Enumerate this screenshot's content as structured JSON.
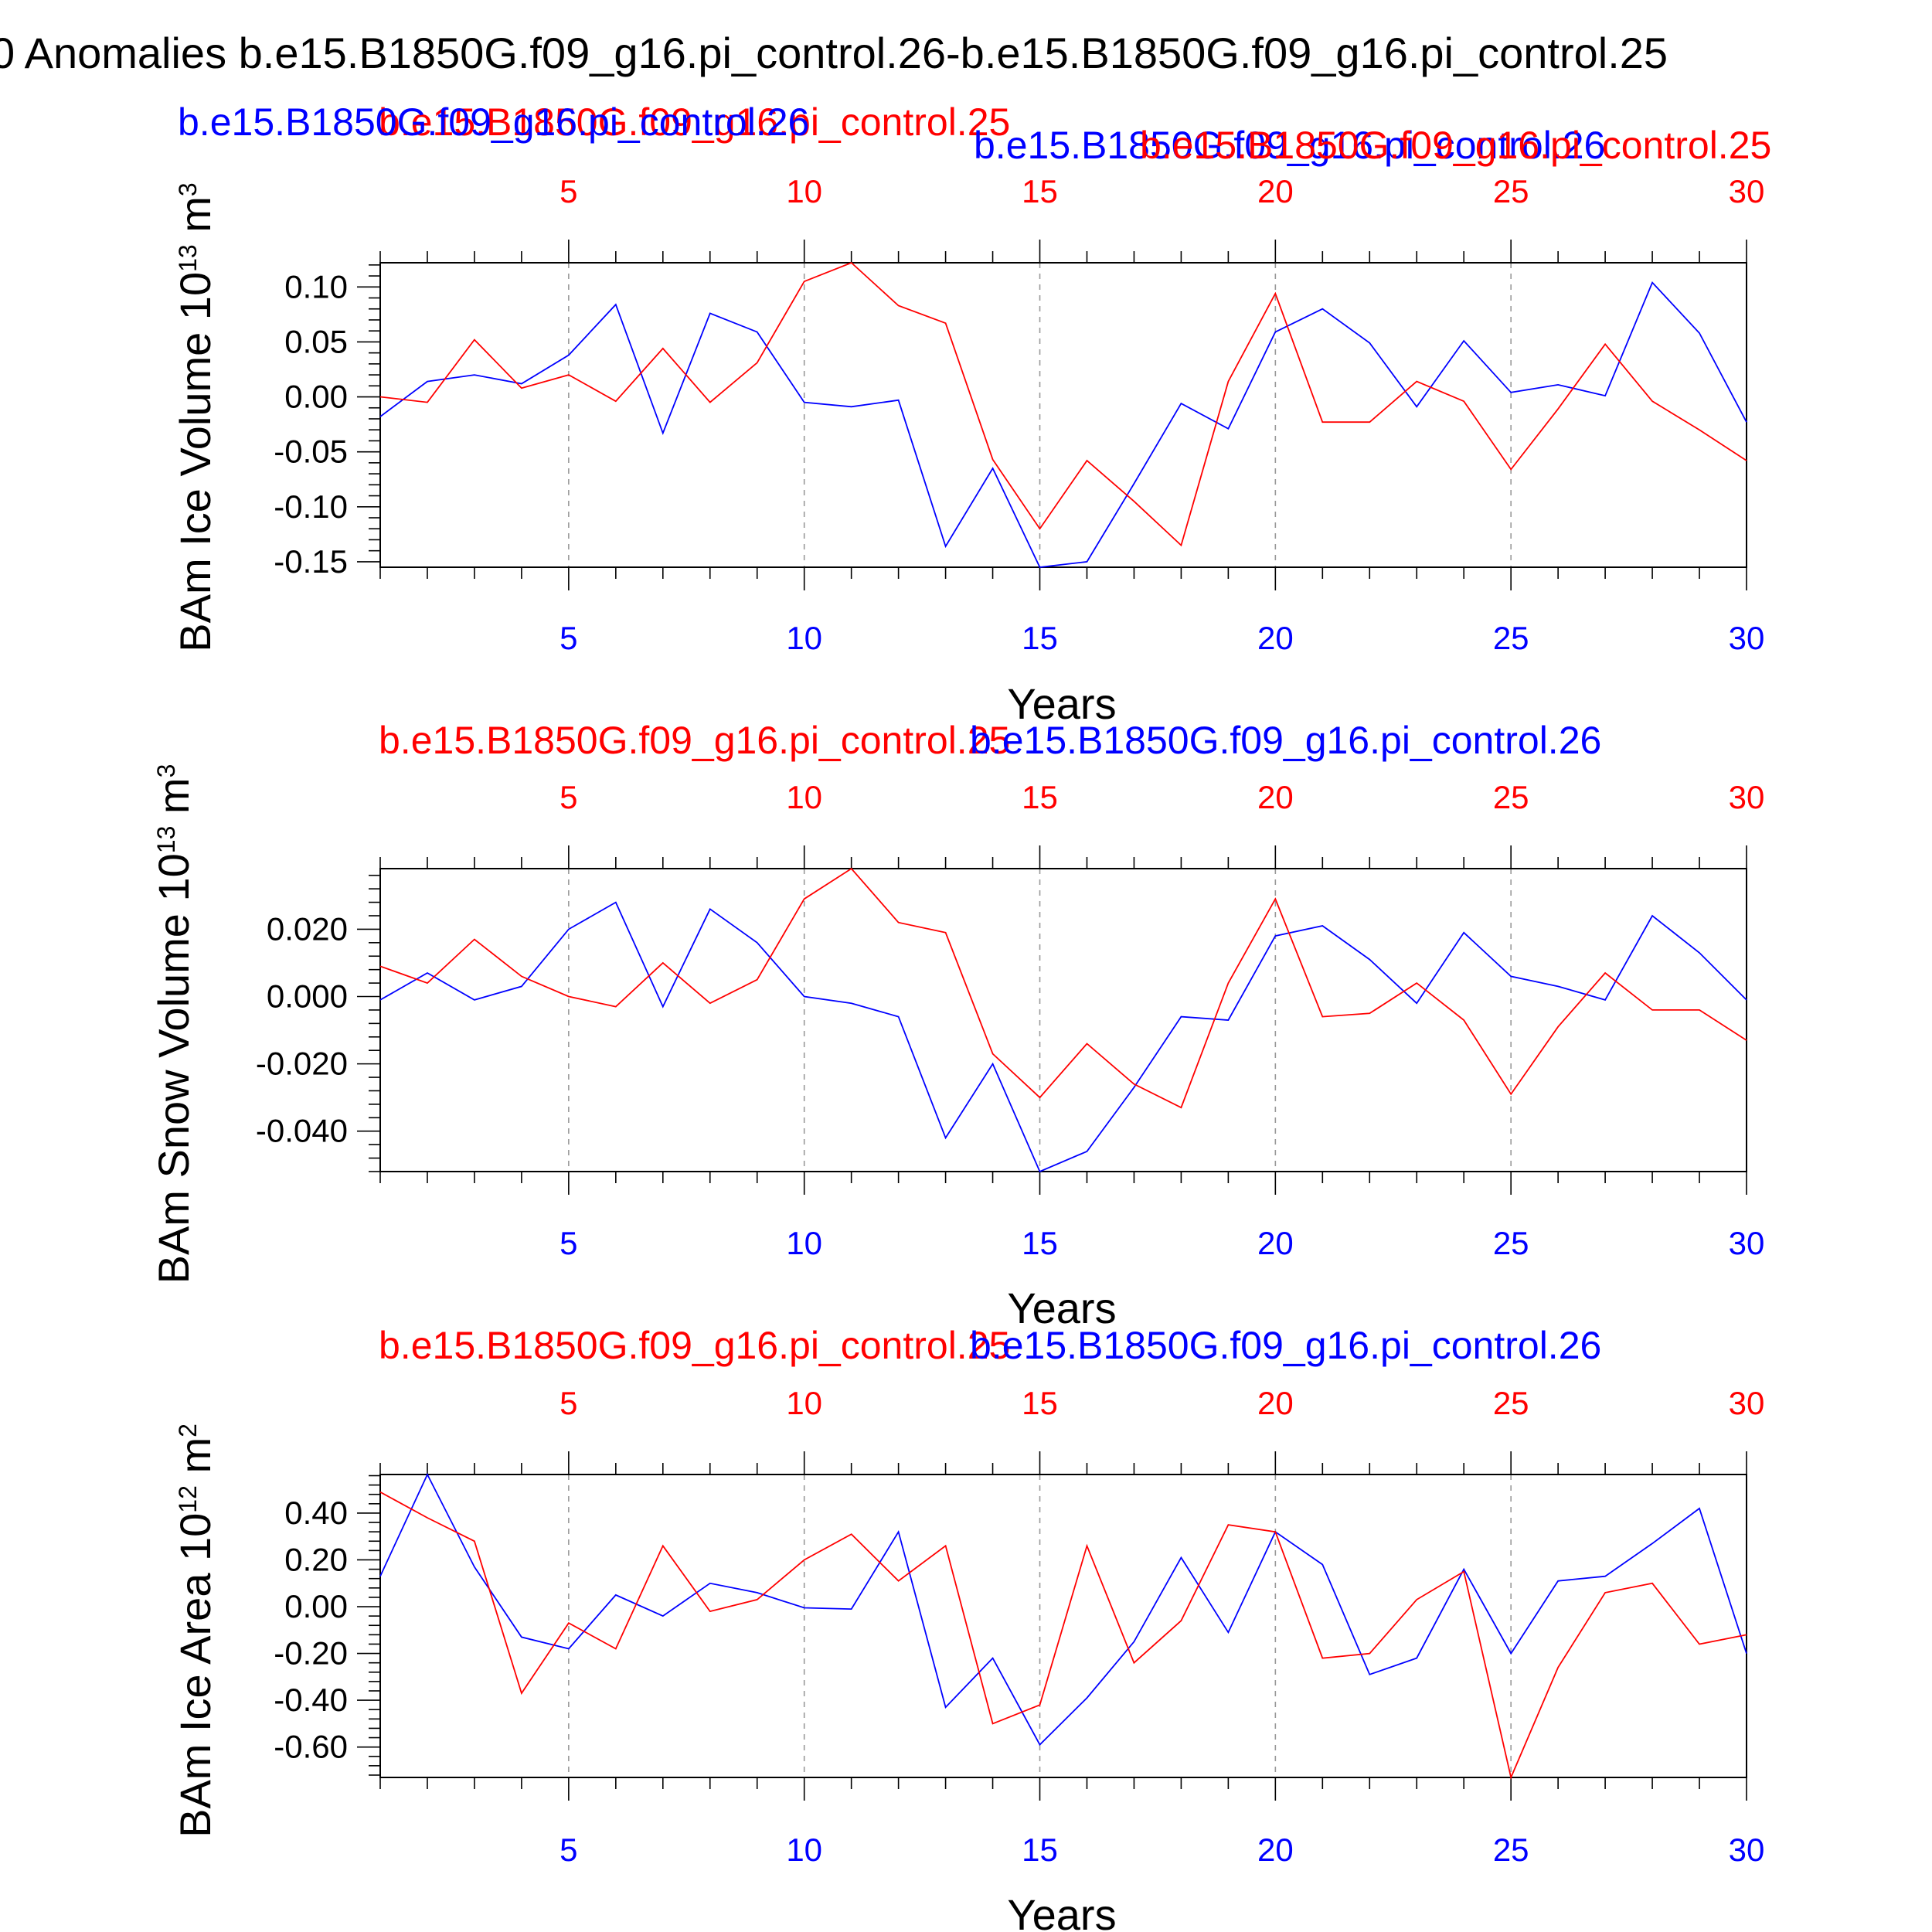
{
  "title": "0 Anomalies b.e15.B1850G.f09_g16.pi_control.26-b.e15.B1850G.f09_g16.pi_control.25",
  "colors": {
    "run26": "#0000ff",
    "run25": "#ff0000",
    "frame": "#000000",
    "grid": "#999999"
  },
  "chart_data": [
    {
      "type": "line",
      "ylabel": "BAm Ice Volume 10",
      "ylabel_exp": "13",
      "ylabel_unit": " m",
      "ylabel_unit_exp": "3",
      "xlabel": "Years",
      "xlim": [
        1,
        30
      ],
      "ylim": [
        -0.155,
        0.122
      ],
      "yticks": [
        -0.15,
        -0.1,
        -0.05,
        0.0,
        0.05,
        0.1
      ],
      "ytick_labels": [
        "-0.15",
        "-0.10",
        "-0.05",
        "0.00",
        "0.05",
        "0.10"
      ],
      "xticks": [
        5,
        10,
        15,
        20,
        25,
        30
      ],
      "xtick_labels": [
        "5",
        "10",
        "15",
        "20",
        "25",
        "30"
      ],
      "grid": "vertical dashed at major x ticks",
      "top_legend": [
        {
          "text": "b.e15.B1850G.f09_g16.pi_control.25",
          "color": "red"
        },
        {
          "text": "b.e15.B1850G.f09_g16.pi_control.26",
          "color": "blue"
        },
        {
          "text": "b.e15.B1850G.f09_g16.pi_control.26",
          "color": "blue"
        },
        {
          "text": "b.e15.B1850G.f09_g16.pi_control.25",
          "color": "red"
        }
      ],
      "x": [
        1,
        2,
        3,
        4,
        5,
        6,
        7,
        8,
        9,
        10,
        11,
        12,
        13,
        14,
        15,
        16,
        17,
        18,
        19,
        20,
        21,
        22,
        23,
        24,
        25,
        26,
        27,
        28,
        29,
        30
      ],
      "series": [
        {
          "name": "b.e15.B1850G.f09_g16.pi_control.26",
          "color": "blue",
          "values": [
            -0.018,
            0.014,
            0.02,
            0.012,
            0.038,
            0.084,
            -0.033,
            0.076,
            0.059,
            -0.005,
            -0.009,
            -0.003,
            -0.136,
            -0.065,
            -0.155,
            -0.15,
            -0.079,
            -0.006,
            -0.029,
            0.059,
            0.08,
            0.049,
            -0.009,
            0.051,
            0.004,
            0.011,
            0.001,
            0.104,
            0.058,
            -0.023
          ]
        },
        {
          "name": "b.e15.B1850G.f09_g16.pi_control.25",
          "color": "red",
          "values": [
            0.0,
            -0.005,
            0.052,
            0.008,
            0.02,
            -0.004,
            0.044,
            -0.005,
            0.031,
            0.105,
            0.122,
            0.083,
            0.067,
            -0.057,
            -0.12,
            -0.058,
            -0.095,
            -0.135,
            0.014,
            0.094,
            -0.023,
            -0.023,
            0.014,
            -0.004,
            -0.066,
            -0.011,
            0.048,
            -0.004,
            -0.03,
            -0.058
          ]
        }
      ]
    },
    {
      "type": "line",
      "ylabel": "BAm Snow Volume 10",
      "ylabel_exp": "13",
      "ylabel_unit": " m",
      "ylabel_unit_exp": "3",
      "xlabel": "Years",
      "xlim": [
        1,
        30
      ],
      "ylim": [
        -0.052,
        0.038
      ],
      "yticks": [
        -0.04,
        -0.02,
        0.0,
        0.02
      ],
      "ytick_labels": [
        "-0.040",
        "-0.020",
        "0.000",
        "0.020"
      ],
      "xticks": [
        5,
        10,
        15,
        20,
        25,
        30
      ],
      "xtick_labels": [
        "5",
        "10",
        "15",
        "20",
        "25",
        "30"
      ],
      "grid": "vertical dashed at major x ticks",
      "top_legend": [
        {
          "text": "b.e15.B1850G.f09_g16.pi_control.25",
          "color": "red"
        },
        {
          "text": "b.e15.B1850G.f09_g16.pi_control.26",
          "color": "blue"
        }
      ],
      "x": [
        1,
        2,
        3,
        4,
        5,
        6,
        7,
        8,
        9,
        10,
        11,
        12,
        13,
        14,
        15,
        16,
        17,
        18,
        19,
        20,
        21,
        22,
        23,
        24,
        25,
        26,
        27,
        28,
        29,
        30
      ],
      "series": [
        {
          "name": "b.e15.B1850G.f09_g16.pi_control.26",
          "color": "blue",
          "values": [
            -0.001,
            0.007,
            -0.001,
            0.003,
            0.02,
            0.028,
            -0.003,
            0.026,
            0.016,
            0.0,
            -0.002,
            -0.006,
            -0.042,
            -0.02,
            -0.052,
            -0.046,
            -0.027,
            -0.006,
            -0.007,
            0.018,
            0.021,
            0.011,
            -0.002,
            0.019,
            0.006,
            0.003,
            -0.001,
            0.024,
            0.013,
            -0.001
          ]
        },
        {
          "name": "b.e15.B1850G.f09_g16.pi_control.25",
          "color": "red",
          "values": [
            0.009,
            0.004,
            0.017,
            0.006,
            0.0,
            -0.003,
            0.01,
            -0.002,
            0.005,
            0.029,
            0.038,
            0.022,
            0.019,
            -0.017,
            -0.03,
            -0.014,
            -0.026,
            -0.033,
            0.004,
            0.029,
            -0.006,
            -0.005,
            0.004,
            -0.007,
            -0.029,
            -0.009,
            0.007,
            -0.004,
            -0.004,
            -0.013
          ]
        }
      ]
    },
    {
      "type": "line",
      "ylabel": "BAm Ice Area 10",
      "ylabel_exp": "12",
      "ylabel_unit": " m",
      "ylabel_unit_exp": "2",
      "xlabel": "Years",
      "xlim": [
        1,
        30
      ],
      "ylim": [
        -0.73,
        0.565
      ],
      "yticks": [
        -0.6,
        -0.4,
        -0.2,
        0.0,
        0.2,
        0.4
      ],
      "ytick_labels": [
        "-0.60",
        "-0.40",
        "-0.20",
        "0.00",
        "0.20",
        "0.40"
      ],
      "xticks": [
        5,
        10,
        15,
        20,
        25,
        30
      ],
      "xtick_labels": [
        "5",
        "10",
        "15",
        "20",
        "25",
        "30"
      ],
      "grid": "vertical dashed at major x ticks",
      "top_legend": [
        {
          "text": "b.e15.B1850G.f09_g16.pi_control.25",
          "color": "red"
        },
        {
          "text": "b.e15.B1850G.f09_g16.pi_control.26",
          "color": "blue"
        }
      ],
      "x": [
        1,
        2,
        3,
        4,
        5,
        6,
        7,
        8,
        9,
        10,
        11,
        12,
        13,
        14,
        15,
        16,
        17,
        18,
        19,
        20,
        21,
        22,
        23,
        24,
        25,
        26,
        27,
        28,
        29,
        30
      ],
      "series": [
        {
          "name": "b.e15.B1850G.f09_g16.pi_control.26",
          "color": "blue",
          "values": [
            0.13,
            0.565,
            0.17,
            -0.13,
            -0.18,
            0.05,
            -0.04,
            0.1,
            0.06,
            -0.005,
            -0.01,
            0.32,
            -0.43,
            -0.22,
            -0.59,
            -0.39,
            -0.15,
            0.21,
            -0.11,
            0.32,
            0.18,
            -0.29,
            -0.22,
            0.16,
            -0.2,
            0.11,
            0.13,
            0.27,
            0.42,
            -0.2
          ]
        },
        {
          "name": "b.e15.B1850G.f09_g16.pi_control.25",
          "color": "red",
          "values": [
            0.49,
            0.38,
            0.28,
            -0.37,
            -0.07,
            -0.18,
            0.26,
            -0.02,
            0.03,
            0.2,
            0.31,
            0.11,
            0.26,
            -0.5,
            -0.42,
            0.26,
            -0.24,
            -0.06,
            0.35,
            0.32,
            -0.22,
            -0.2,
            0.03,
            0.15,
            -0.73,
            -0.26,
            0.06,
            0.1,
            -0.16,
            -0.12
          ]
        }
      ]
    }
  ]
}
